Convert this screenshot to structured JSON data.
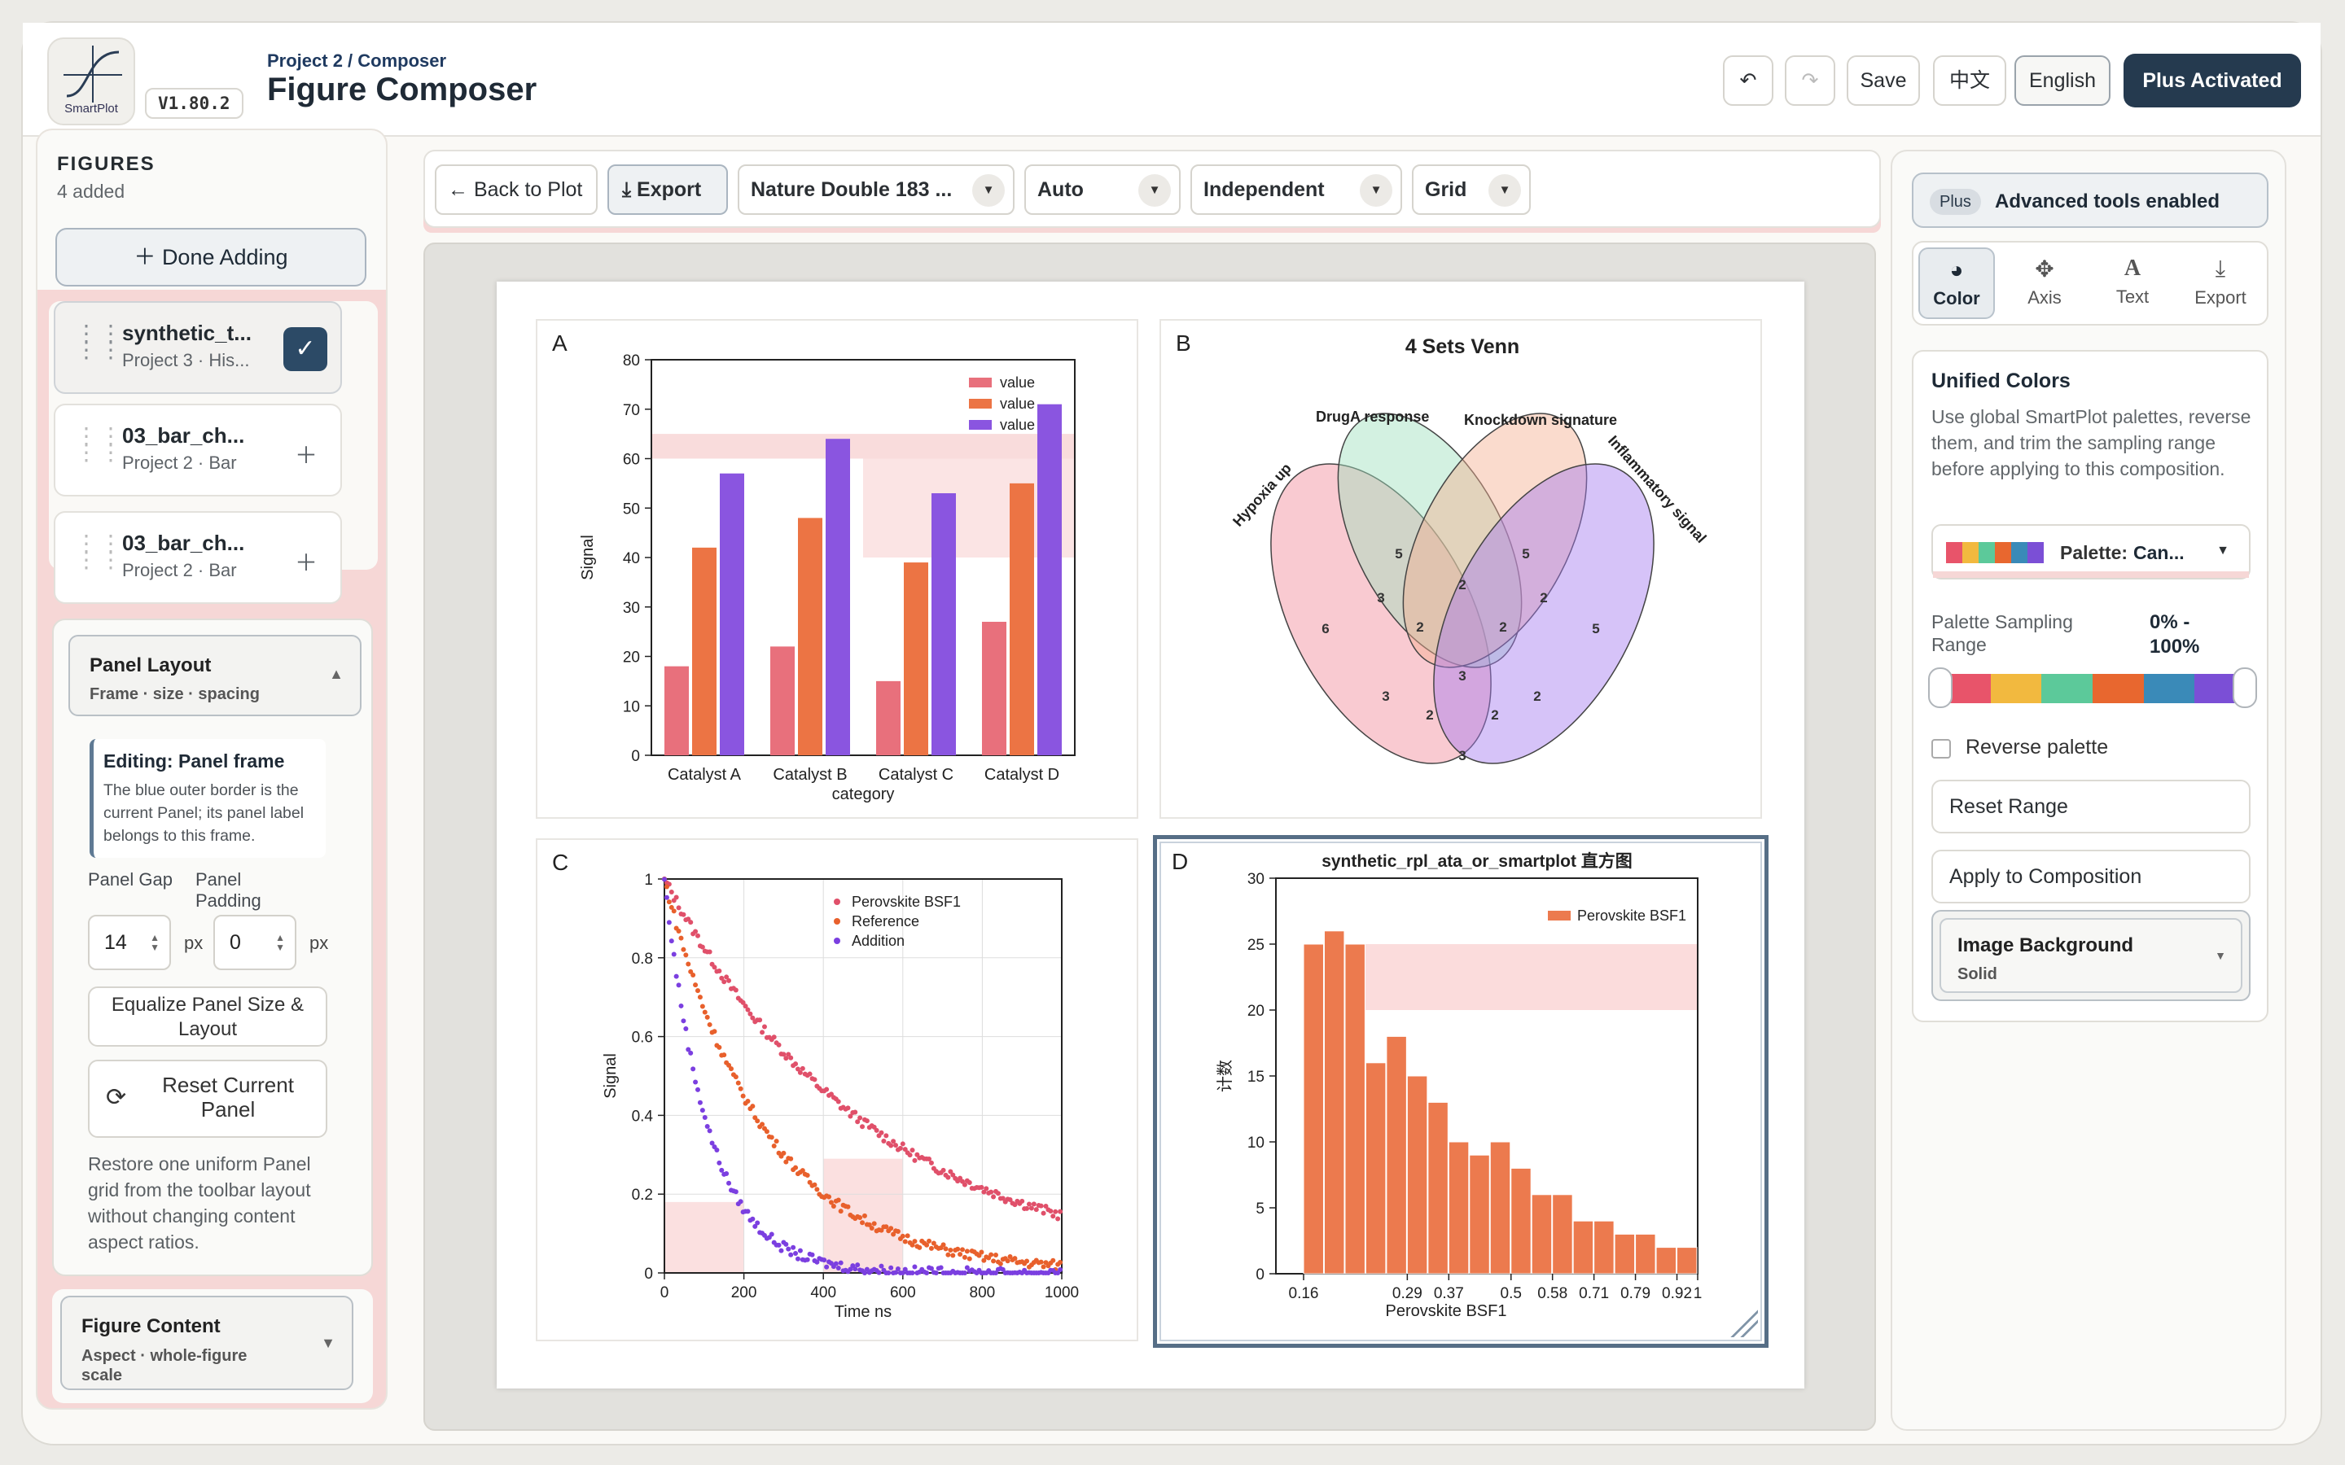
{
  "header": {
    "logo_text": "SmartPlot",
    "version": "V1.80.2",
    "breadcrumb": "Project 2 / Composer",
    "title": "Figure Composer",
    "undo_icon": "undo-icon",
    "redo_icon": "redo-icon",
    "save": "Save",
    "lang_zh": "中文",
    "lang_en": "English",
    "plus": "Plus Activated"
  },
  "left": {
    "title": "FIGURES",
    "count": "4 added",
    "done": "Done Adding",
    "figures": [
      {
        "name": "synthetic_t...",
        "sub": "Project 3 · His...",
        "selected": true
      },
      {
        "name": "03_bar_ch...",
        "sub": "Project 2 · Bar",
        "selected": false
      },
      {
        "name": "03_bar_ch...",
        "sub": "Project 2 · Bar",
        "selected": false
      }
    ],
    "panel_layout": {
      "title": "Panel Layout",
      "sub": "Frame · size · spacing",
      "edit_title": "Editing: Panel frame",
      "edit_desc": "The blue outer border is the current Panel; its panel label belongs to this frame.",
      "gap_label": "Panel Gap",
      "gap_value": "14",
      "padding_label": "Panel Padding",
      "padding_value": "0",
      "unit": "px",
      "equalize": "Equalize Panel Size & Layout",
      "reset": "Reset Current Panel",
      "restore": "Restore one uniform Panel grid from the toolbar layout without changing content aspect ratios."
    },
    "figure_content": {
      "title": "Figure Content",
      "sub": "Aspect · whole-figure scale"
    }
  },
  "toolbar": {
    "back": "Back to Plot",
    "export": "Export",
    "size": "Nature Double 183 ...",
    "mode": "Auto",
    "axis": "Independent",
    "layout": "Grid"
  },
  "right": {
    "plus_badge": "Plus",
    "plus_text": "Advanced tools enabled",
    "tabs": [
      {
        "label": "Color",
        "icon": "palette-icon",
        "glyph": "🎨",
        "active": true
      },
      {
        "label": "Axis",
        "icon": "move-icon",
        "glyph": "✥",
        "active": false
      },
      {
        "label": "Text",
        "icon": "text-icon",
        "glyph": "A",
        "active": false
      },
      {
        "label": "Export",
        "icon": "download-icon",
        "glyph": "⤓",
        "active": false
      }
    ],
    "unified": {
      "title": "Unified Colors",
      "desc": "Use global SmartPlot palettes, reverse them, and trim the sampling range before applying to this composition.",
      "palette_label": "Palette:",
      "palette_value": "Can...",
      "range_label": "Palette Sampling Range",
      "range_value": "0% - 100%",
      "reverse": "Reverse palette",
      "reset": "Reset Range",
      "apply": "Apply to Composition",
      "bg_title": "Image Background",
      "bg_value": "Solid"
    },
    "palette_colors": [
      "#e8546a",
      "#f2b93f",
      "#5cc99a",
      "#e8672f",
      "#3a8ab8",
      "#7b4fd6"
    ]
  },
  "chart_data": [
    {
      "panel": "A",
      "type": "bar",
      "categories": [
        "Catalyst A",
        "Catalyst B",
        "Catalyst C",
        "Catalyst D"
      ],
      "xlabel": "category",
      "ylabel": "Signal",
      "ylim": [
        0,
        80
      ],
      "yticks": [
        0,
        10,
        20,
        30,
        40,
        50,
        60,
        70,
        80
      ],
      "legend": "top-right",
      "series": [
        {
          "name": "value",
          "values": [
            18,
            22,
            15,
            27
          ],
          "color": "#e8707c"
        },
        {
          "name": "value",
          "values": [
            42,
            48,
            39,
            55
          ],
          "color": "#ec7444"
        },
        {
          "name": "value",
          "values": [
            57,
            64,
            53,
            71
          ],
          "color": "#8a55e0"
        }
      ]
    },
    {
      "panel": "B",
      "type": "venn",
      "title": "4 Sets Venn",
      "sets": [
        "Hypoxia up",
        "DrugA response",
        "Knockdown signature",
        "Inflammatory signal"
      ],
      "regions": [
        6,
        5,
        5,
        5,
        3,
        2,
        2,
        2,
        2,
        3,
        3,
        2,
        2,
        2,
        3
      ]
    },
    {
      "panel": "C",
      "type": "scatter",
      "xlabel": "Time ns",
      "ylabel": "Signal",
      "xlim": [
        0,
        1000
      ],
      "ylim": [
        0,
        1
      ],
      "xticks": [
        0,
        200,
        400,
        600,
        800,
        1000
      ],
      "yticks": [
        0,
        0.2,
        0.4,
        0.6,
        0.8,
        1
      ],
      "legend": "top-right",
      "series": [
        {
          "name": "Perovskite BSF1",
          "tau": 520,
          "color": "#e0506a"
        },
        {
          "name": "Reference",
          "tau": 250,
          "color": "#e8602c"
        },
        {
          "name": "Addition",
          "tau": 110,
          "color": "#7b3fe0"
        }
      ]
    },
    {
      "panel": "D",
      "type": "bar",
      "title": "synthetic_rpl_ata_or_smartplot 直方图",
      "xlabel": "Perovskite BSF1",
      "ylabel": "计数",
      "ylim": [
        0,
        30
      ],
      "yticks": [
        0,
        5,
        10,
        15,
        20,
        25,
        30
      ],
      "xticks": [
        "0.16",
        "0.29",
        "0.37",
        "0.5",
        "0.58",
        "0.71",
        "0.79",
        "0.92",
        "1"
      ],
      "legend": "top-right",
      "series": [
        {
          "name": "Perovskite BSF1",
          "values": [
            25,
            26,
            25,
            16,
            18,
            15,
            13,
            10,
            9,
            10,
            8,
            6,
            6,
            4,
            4,
            3,
            3,
            2,
            2
          ],
          "color": "#ec7a4e"
        }
      ]
    }
  ]
}
